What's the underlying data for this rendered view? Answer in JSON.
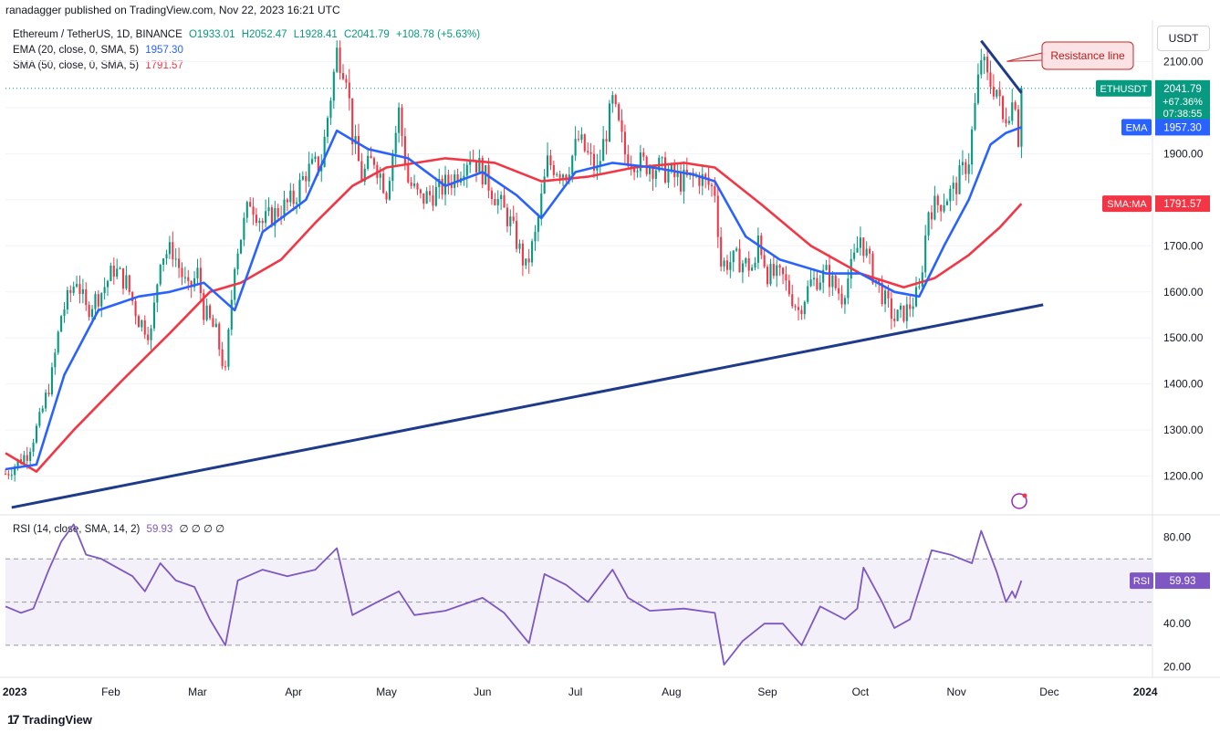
{
  "header": {
    "publisher_line": "ranadagger published on TradingView.com, Nov 22, 2023 16:21 UTC"
  },
  "legend": {
    "symbol": "Ethereum / TetherUS, 1D, BINANCE",
    "open": "O1933.01",
    "high": "H2052.47",
    "low": "L1928.41",
    "close": "C2041.79",
    "change": "+108.78 (+5.63%)",
    "ema_label": "EMA (20, close, 0, SMA, 5)",
    "ema_value": "1957.30",
    "sma_label": "SMA (50, close, 0, SMA, 5)",
    "sma_value": "1791.57",
    "rsi_label": "RSI (14, close, SMA, 14, 2)",
    "rsi_value": "59.93",
    "rsi_extra": "∅ ∅ ∅ ∅"
  },
  "unit_button": "USDT",
  "footer": {
    "brand": "TradingView",
    "logo_icon": "tradingview-logo-icon"
  },
  "colors": {
    "up": "#089981",
    "down": "#f23645",
    "ema": "#2962ff",
    "sma": "#f23645",
    "rsi": "#7e57c2",
    "trendline": "#1e3a8a",
    "resistance": "#1e3a8a"
  },
  "chart_data": {
    "type": "candlestick",
    "symbol": "ETHUSDT",
    "interval": "1D",
    "price_axis": {
      "ticks": [
        1200,
        1300,
        1400,
        1500,
        1600,
        1700,
        1800,
        1900,
        2000,
        2100
      ],
      "tick_labels": [
        "1200.00",
        "1300.00",
        "1400.00",
        "1500.00",
        "1600.00",
        "1700.00",
        "1800.00",
        "1900.00",
        "",
        "2100.00"
      ],
      "range": [
        1118,
        2190
      ]
    },
    "time_axis": {
      "labels": [
        "2023",
        "Feb",
        "Mar",
        "Apr",
        "May",
        "Jun",
        "Jul",
        "Aug",
        "Sep",
        "Oct",
        "Nov",
        "Dec",
        "2024"
      ],
      "label_dates": [
        "2023-01-01",
        "2023-02-01",
        "2023-03-01",
        "2023-04-01",
        "2023-05-01",
        "2023-06-01",
        "2023-07-01",
        "2023-08-01",
        "2023-09-01",
        "2023-10-01",
        "2023-11-01",
        "2023-12-01",
        "2024-01-01"
      ],
      "range": [
        "2022-12-29",
        "2024-01-03"
      ]
    },
    "price_path": [
      [
        "2022-12-29",
        1205
      ],
      [
        "2023-01-05",
        1250
      ],
      [
        "2023-01-09",
        1320
      ],
      [
        "2023-01-13",
        1420
      ],
      [
        "2023-01-16",
        1550
      ],
      [
        "2023-01-21",
        1630
      ],
      [
        "2023-01-24",
        1560
      ],
      [
        "2023-01-29",
        1600
      ],
      [
        "2023-02-02",
        1650
      ],
      [
        "2023-02-06",
        1620
      ],
      [
        "2023-02-10",
        1540
      ],
      [
        "2023-02-14",
        1510
      ],
      [
        "2023-02-17",
        1680
      ],
      [
        "2023-02-21",
        1690
      ],
      [
        "2023-02-26",
        1600
      ],
      [
        "2023-03-01",
        1640
      ],
      [
        "2023-03-03",
        1560
      ],
      [
        "2023-03-07",
        1510
      ],
      [
        "2023-03-10",
        1420
      ],
      [
        "2023-03-13",
        1670
      ],
      [
        "2023-03-18",
        1800
      ],
      [
        "2023-03-22",
        1750
      ],
      [
        "2023-03-28",
        1780
      ],
      [
        "2023-04-01",
        1800
      ],
      [
        "2023-04-05",
        1860
      ],
      [
        "2023-04-10",
        1880
      ],
      [
        "2023-04-12",
        1980
      ],
      [
        "2023-04-15",
        2120
      ],
      [
        "2023-04-18",
        2080
      ],
      [
        "2023-04-20",
        1940
      ],
      [
        "2023-04-23",
        1850
      ],
      [
        "2023-04-27",
        1890
      ],
      [
        "2023-05-01",
        1820
      ],
      [
        "2023-05-05",
        1990
      ],
      [
        "2023-05-08",
        1840
      ],
      [
        "2023-05-12",
        1800
      ],
      [
        "2023-05-18",
        1820
      ],
      [
        "2023-05-23",
        1850
      ],
      [
        "2023-05-28",
        1900
      ],
      [
        "2023-06-01",
        1860
      ],
      [
        "2023-06-05",
        1810
      ],
      [
        "2023-06-10",
        1750
      ],
      [
        "2023-06-15",
        1650
      ],
      [
        "2023-06-18",
        1720
      ],
      [
        "2023-06-22",
        1880
      ],
      [
        "2023-06-28",
        1860
      ],
      [
        "2023-07-02",
        1930
      ],
      [
        "2023-07-08",
        1860
      ],
      [
        "2023-07-13",
        2010
      ],
      [
        "2023-07-17",
        1900
      ],
      [
        "2023-07-22",
        1880
      ],
      [
        "2023-07-28",
        1870
      ],
      [
        "2023-08-04",
        1840
      ],
      [
        "2023-08-10",
        1850
      ],
      [
        "2023-08-15",
        1820
      ],
      [
        "2023-08-17",
        1660
      ],
      [
        "2023-08-22",
        1670
      ],
      [
        "2023-08-28",
        1650
      ],
      [
        "2023-08-29",
        1720
      ],
      [
        "2023-09-01",
        1640
      ],
      [
        "2023-09-06",
        1630
      ],
      [
        "2023-09-11",
        1560
      ],
      [
        "2023-09-15",
        1620
      ],
      [
        "2023-09-20",
        1640
      ],
      [
        "2023-09-25",
        1590
      ],
      [
        "2023-09-29",
        1670
      ],
      [
        "2023-10-01",
        1720
      ],
      [
        "2023-10-05",
        1640
      ],
      [
        "2023-10-09",
        1580
      ],
      [
        "2023-10-12",
        1540
      ],
      [
        "2023-10-16",
        1560
      ],
      [
        "2023-10-20",
        1600
      ],
      [
        "2023-10-23",
        1780
      ],
      [
        "2023-10-26",
        1790
      ],
      [
        "2023-10-31",
        1820
      ],
      [
        "2023-11-05",
        1890
      ],
      [
        "2023-11-09",
        2110
      ],
      [
        "2023-11-11",
        2060
      ],
      [
        "2023-11-14",
        2040
      ],
      [
        "2023-11-16",
        1970
      ],
      [
        "2023-11-18",
        2000
      ],
      [
        "2023-11-20",
        2020
      ],
      [
        "2023-11-21",
        1933
      ],
      [
        "2023-11-22",
        2041.79
      ]
    ],
    "ema_path": [
      [
        "2022-12-29",
        1215
      ],
      [
        "2023-01-08",
        1225
      ],
      [
        "2023-01-17",
        1420
      ],
      [
        "2023-01-28",
        1560
      ],
      [
        "2023-02-10",
        1590
      ],
      [
        "2023-02-20",
        1600
      ],
      [
        "2023-03-03",
        1620
      ],
      [
        "2023-03-13",
        1560
      ],
      [
        "2023-03-22",
        1730
      ],
      [
        "2023-04-05",
        1800
      ],
      [
        "2023-04-15",
        1950
      ],
      [
        "2023-04-25",
        1910
      ],
      [
        "2023-05-08",
        1890
      ],
      [
        "2023-05-20",
        1830
      ],
      [
        "2023-06-01",
        1860
      ],
      [
        "2023-06-12",
        1810
      ],
      [
        "2023-06-20",
        1760
      ],
      [
        "2023-07-01",
        1860
      ],
      [
        "2023-07-13",
        1880
      ],
      [
        "2023-07-26",
        1870
      ],
      [
        "2023-08-08",
        1855
      ],
      [
        "2023-08-15",
        1840
      ],
      [
        "2023-08-25",
        1720
      ],
      [
        "2023-09-05",
        1670
      ],
      [
        "2023-09-20",
        1640
      ],
      [
        "2023-10-01",
        1640
      ],
      [
        "2023-10-12",
        1600
      ],
      [
        "2023-10-20",
        1590
      ],
      [
        "2023-10-28",
        1700
      ],
      [
        "2023-11-05",
        1800
      ],
      [
        "2023-11-12",
        1920
      ],
      [
        "2023-11-17",
        1945
      ],
      [
        "2023-11-22",
        1957.3
      ]
    ],
    "sma_path": [
      [
        "2022-12-29",
        1250
      ],
      [
        "2023-01-08",
        1210
      ],
      [
        "2023-01-20",
        1300
      ],
      [
        "2023-02-05",
        1410
      ],
      [
        "2023-02-20",
        1510
      ],
      [
        "2023-03-05",
        1600
      ],
      [
        "2023-03-15",
        1620
      ],
      [
        "2023-03-28",
        1670
      ],
      [
        "2023-04-08",
        1750
      ],
      [
        "2023-04-20",
        1830
      ],
      [
        "2023-05-01",
        1870
      ],
      [
        "2023-05-20",
        1890
      ],
      [
        "2023-06-05",
        1880
      ],
      [
        "2023-06-20",
        1840
      ],
      [
        "2023-07-05",
        1850
      ],
      [
        "2023-07-20",
        1870
      ],
      [
        "2023-08-05",
        1880
      ],
      [
        "2023-08-15",
        1870
      ],
      [
        "2023-08-30",
        1790
      ],
      [
        "2023-09-15",
        1700
      ],
      [
        "2023-10-01",
        1640
      ],
      [
        "2023-10-15",
        1610
      ],
      [
        "2023-10-25",
        1630
      ],
      [
        "2023-11-05",
        1680
      ],
      [
        "2023-11-15",
        1740
      ],
      [
        "2023-11-22",
        1791.57
      ]
    ],
    "annotations": [
      {
        "kind": "trendline",
        "from": [
          "2022-12-31",
          1132
        ],
        "to": [
          "2023-11-29",
          1572
        ]
      },
      {
        "kind": "resistance",
        "label": "Resistance line",
        "from": [
          "2023-11-09",
          2145
        ],
        "to": [
          "2023-11-22",
          2032
        ]
      }
    ],
    "price_labels": [
      {
        "name": "ethusdt-price-label",
        "tag": "ETHUSDT",
        "value": "2041.79",
        "extra": [
          "+67.36%",
          "07:38:55"
        ],
        "price": 2041.79,
        "color": "#089981"
      },
      {
        "name": "ema-price-label",
        "tag": "EMA",
        "value": "1957.30",
        "price": 1957.3,
        "color": "#2962ff"
      },
      {
        "name": "sma-price-label",
        "tag": "SMA:MA",
        "value": "1791.57",
        "price": 1791.57,
        "color": "#f23645"
      }
    ],
    "rsi": {
      "ticks": [
        20,
        40,
        80
      ],
      "tick_labels": [
        "20.00",
        "40.00",
        "80.00"
      ],
      "range": [
        16,
        90
      ],
      "band": [
        30,
        70
      ],
      "midline": 50,
      "current": 59.93,
      "path": [
        [
          "2022-12-29",
          48
        ],
        [
          "2023-01-03",
          45
        ],
        [
          "2023-01-07",
          47
        ],
        [
          "2023-01-12",
          65
        ],
        [
          "2023-01-16",
          78
        ],
        [
          "2023-01-20",
          86
        ],
        [
          "2023-01-24",
          72
        ],
        [
          "2023-01-29",
          70
        ],
        [
          "2023-02-03",
          66
        ],
        [
          "2023-02-08",
          62
        ],
        [
          "2023-02-12",
          55
        ],
        [
          "2023-02-17",
          68
        ],
        [
          "2023-02-22",
          60
        ],
        [
          "2023-02-28",
          57
        ],
        [
          "2023-03-05",
          42
        ],
        [
          "2023-03-10",
          30
        ],
        [
          "2023-03-14",
          60
        ],
        [
          "2023-03-22",
          65
        ],
        [
          "2023-03-30",
          62
        ],
        [
          "2023-04-08",
          65
        ],
        [
          "2023-04-15",
          75
        ],
        [
          "2023-04-20",
          44
        ],
        [
          "2023-04-28",
          50
        ],
        [
          "2023-05-05",
          55
        ],
        [
          "2023-05-10",
          44
        ],
        [
          "2023-05-20",
          46
        ],
        [
          "2023-06-01",
          52
        ],
        [
          "2023-06-08",
          45
        ],
        [
          "2023-06-16",
          31
        ],
        [
          "2023-06-21",
          63
        ],
        [
          "2023-06-28",
          58
        ],
        [
          "2023-07-05",
          50
        ],
        [
          "2023-07-13",
          65
        ],
        [
          "2023-07-18",
          52
        ],
        [
          "2023-07-25",
          46
        ],
        [
          "2023-08-05",
          47
        ],
        [
          "2023-08-15",
          45
        ],
        [
          "2023-08-18",
          21
        ],
        [
          "2023-08-24",
          32
        ],
        [
          "2023-08-31",
          40
        ],
        [
          "2023-09-06",
          40
        ],
        [
          "2023-09-12",
          30
        ],
        [
          "2023-09-18",
          48
        ],
        [
          "2023-09-26",
          42
        ],
        [
          "2023-09-30",
          47
        ],
        [
          "2023-10-02",
          66
        ],
        [
          "2023-10-08",
          50
        ],
        [
          "2023-10-12",
          38
        ],
        [
          "2023-10-17",
          42
        ],
        [
          "2023-10-24",
          74
        ],
        [
          "2023-10-30",
          72
        ],
        [
          "2023-11-06",
          68
        ],
        [
          "2023-11-09",
          83
        ],
        [
          "2023-11-14",
          64
        ],
        [
          "2023-11-17",
          50
        ],
        [
          "2023-11-19",
          55
        ],
        [
          "2023-11-20",
          52
        ],
        [
          "2023-11-22",
          59.93
        ]
      ]
    }
  }
}
